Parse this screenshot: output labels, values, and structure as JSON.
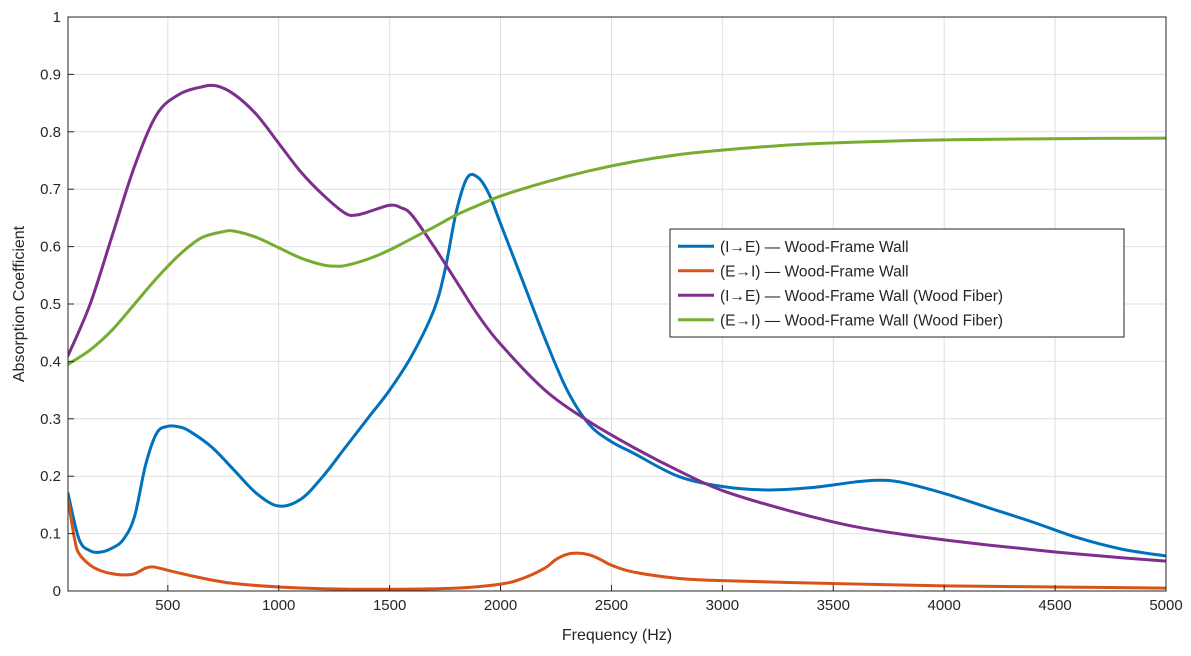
{
  "chart_data": {
    "type": "line",
    "title": "",
    "xlabel": "Frequency (Hz)",
    "ylabel": "Absorption Coefficient",
    "xlim": [
      50,
      5000
    ],
    "ylim": [
      0,
      1
    ],
    "xticks": [
      500,
      1000,
      1500,
      2000,
      2500,
      3000,
      3500,
      4000,
      4500,
      5000
    ],
    "yticks": [
      0,
      0.1,
      0.2,
      0.3,
      0.4,
      0.5,
      0.6,
      0.7,
      0.8,
      0.9,
      1
    ],
    "grid": true,
    "legend_position": "center-right",
    "series": [
      {
        "name": "(I→E) — Wood-Frame Wall",
        "color": "#0072BD",
        "x": [
          50,
          100,
          150,
          200,
          250,
          300,
          350,
          400,
          450,
          500,
          550,
          600,
          700,
          800,
          900,
          1000,
          1100,
          1200,
          1300,
          1400,
          1500,
          1600,
          1700,
          1750,
          1800,
          1850,
          1900,
          1950,
          2000,
          2100,
          2200,
          2300,
          2400,
          2500,
          2600,
          2800,
          3000,
          3200,
          3400,
          3600,
          3700,
          3800,
          4000,
          4200,
          4400,
          4600,
          4800,
          5000
        ],
        "y": [
          0.17,
          0.09,
          0.07,
          0.068,
          0.075,
          0.09,
          0.13,
          0.22,
          0.275,
          0.287,
          0.286,
          0.278,
          0.25,
          0.21,
          0.17,
          0.148,
          0.16,
          0.2,
          0.25,
          0.3,
          0.35,
          0.41,
          0.49,
          0.56,
          0.66,
          0.72,
          0.72,
          0.69,
          0.64,
          0.54,
          0.44,
          0.35,
          0.29,
          0.26,
          0.24,
          0.2,
          0.182,
          0.176,
          0.18,
          0.19,
          0.193,
          0.19,
          0.17,
          0.145,
          0.12,
          0.093,
          0.073,
          0.061
        ]
      },
      {
        "name": "(E→I) — Wood-Frame Wall",
        "color": "#D95319",
        "x": [
          50,
          80,
          100,
          150,
          200,
          250,
          300,
          350,
          400,
          430,
          460,
          500,
          600,
          700,
          800,
          1000,
          1200,
          1500,
          1800,
          2000,
          2100,
          2200,
          2250,
          2300,
          2350,
          2400,
          2450,
          2500,
          2600,
          2800,
          3000,
          3500,
          4000,
          4500,
          5000
        ],
        "y": [
          0.16,
          0.09,
          0.065,
          0.045,
          0.035,
          0.03,
          0.028,
          0.03,
          0.04,
          0.042,
          0.04,
          0.036,
          0.027,
          0.019,
          0.013,
          0.007,
          0.004,
          0.003,
          0.005,
          0.012,
          0.022,
          0.04,
          0.055,
          0.064,
          0.066,
          0.063,
          0.055,
          0.045,
          0.033,
          0.022,
          0.018,
          0.013,
          0.009,
          0.007,
          0.005
        ]
      },
      {
        "name": "(I→E) — Wood-Frame Wall (Wood Fiber)",
        "color": "#7E2F8E",
        "x": [
          50,
          150,
          250,
          350,
          450,
          550,
          650,
          720,
          800,
          900,
          1000,
          1100,
          1200,
          1300,
          1350,
          1400,
          1500,
          1550,
          1600,
          1700,
          1800,
          1900,
          2000,
          2200,
          2400,
          2600,
          2800,
          3000,
          3300,
          3600,
          3900,
          4200,
          4500,
          4800,
          5000
        ],
        "y": [
          0.41,
          0.5,
          0.62,
          0.74,
          0.83,
          0.865,
          0.878,
          0.88,
          0.865,
          0.83,
          0.78,
          0.73,
          0.69,
          0.658,
          0.655,
          0.66,
          0.672,
          0.668,
          0.655,
          0.6,
          0.54,
          0.48,
          0.43,
          0.35,
          0.295,
          0.25,
          0.21,
          0.175,
          0.14,
          0.112,
          0.094,
          0.08,
          0.068,
          0.058,
          0.052
        ]
      },
      {
        "name": "(E→I) — Wood-Frame Wall (Wood Fiber)",
        "color": "#77AC30",
        "x": [
          50,
          150,
          250,
          350,
          450,
          550,
          650,
          750,
          800,
          900,
          1000,
          1100,
          1200,
          1250,
          1300,
          1400,
          1500,
          1600,
          1700,
          1800,
          1900,
          2000,
          2200,
          2400,
          2600,
          2800,
          3000,
          3300,
          3600,
          4000,
          4500,
          5000
        ],
        "y": [
          0.395,
          0.42,
          0.455,
          0.5,
          0.545,
          0.585,
          0.615,
          0.626,
          0.627,
          0.616,
          0.598,
          0.58,
          0.568,
          0.566,
          0.567,
          0.578,
          0.594,
          0.614,
          0.634,
          0.655,
          0.672,
          0.688,
          0.712,
          0.732,
          0.748,
          0.76,
          0.768,
          0.777,
          0.782,
          0.786,
          0.788,
          0.789
        ]
      }
    ]
  }
}
